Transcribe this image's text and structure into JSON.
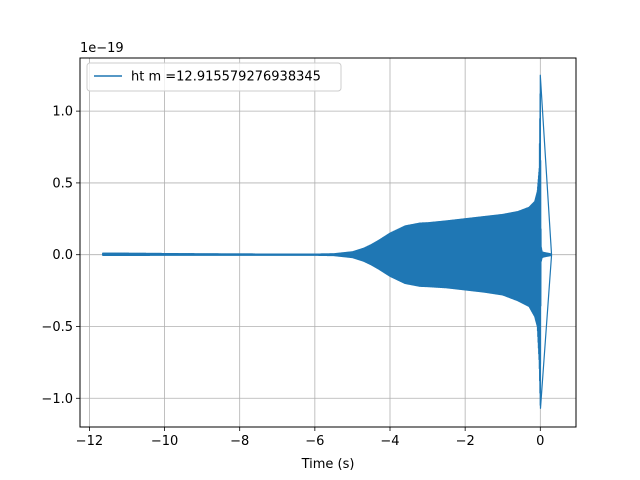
{
  "chart_data": {
    "type": "line",
    "title": "",
    "xlabel": "Time (s)",
    "ylabel": "",
    "y_offset_text": "1e−19",
    "xlim": [
      -12.25,
      0.95
    ],
    "ylim": [
      -1.2,
      1.37
    ],
    "xticks": [
      -12,
      -10,
      -8,
      -6,
      -4,
      -2,
      0
    ],
    "xtick_labels": [
      "−12",
      "−10",
      "−8",
      "−6",
      "−4",
      "−2",
      "0"
    ],
    "yticks": [
      -1.0,
      -0.5,
      0.0,
      0.5,
      1.0
    ],
    "ytick_labels": [
      "−1.0",
      "−0.5",
      "0.0",
      "0.5",
      "1.0"
    ],
    "grid": true,
    "legend_position": "upper-left",
    "series": [
      {
        "name": "ht m =12.915579276938345",
        "color": "#1f77b4",
        "envelope": {
          "t": [
            -11.65,
            -11.0,
            -10.0,
            -9.0,
            -8.0,
            -7.0,
            -6.0,
            -5.5,
            -5.0,
            -4.7,
            -4.5,
            -4.3,
            -4.0,
            -3.6,
            -3.2,
            -3.0,
            -2.5,
            -2.0,
            -1.5,
            -1.0,
            -0.6,
            -0.3,
            -0.15,
            -0.08,
            -0.03,
            0.0,
            0.02,
            0.05,
            0.1,
            0.2,
            0.3
          ],
          "upper": [
            0.01,
            0.01,
            0.008,
            0.006,
            0.005,
            0.004,
            0.004,
            0.006,
            0.02,
            0.045,
            0.07,
            0.1,
            0.15,
            0.2,
            0.22,
            0.222,
            0.235,
            0.25,
            0.265,
            0.28,
            0.3,
            0.33,
            0.37,
            0.44,
            0.6,
            1.25,
            0.06,
            0.02,
            0.015,
            0.01,
            0.005
          ],
          "lower": [
            -0.005,
            -0.005,
            -0.004,
            -0.004,
            -0.004,
            -0.004,
            -0.004,
            -0.006,
            -0.02,
            -0.045,
            -0.07,
            -0.1,
            -0.15,
            -0.2,
            -0.22,
            -0.222,
            -0.23,
            -0.245,
            -0.26,
            -0.28,
            -0.32,
            -0.36,
            -0.43,
            -0.5,
            -0.75,
            -1.07,
            -0.05,
            -0.02,
            -0.015,
            -0.01,
            -0.005
          ]
        }
      }
    ]
  }
}
